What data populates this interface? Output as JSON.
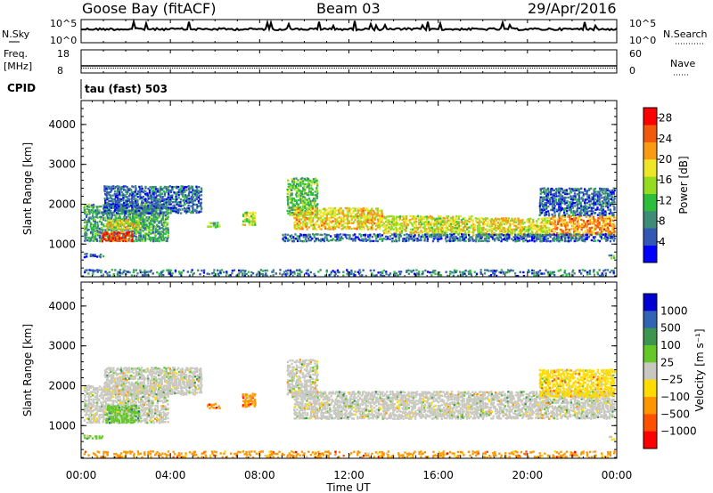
{
  "header": {
    "station": "Goose Bay (fitACF)",
    "beam": "Beam 03",
    "date": "29/Apr/2016"
  },
  "strip_labels": {
    "nsky": "N.Sky",
    "nsearch": "N.Search",
    "freq_line1": "Freq.",
    "freq_line2": "[MHz]",
    "nave": "Nave",
    "cpid": "CPID",
    "cpid_value": "tau (fast) 503"
  },
  "strip_ticks": {
    "noise_left": [
      "10^5",
      "10^0"
    ],
    "noise_right": [
      "10^5",
      "10^0"
    ],
    "freq_left": [
      "18",
      "8"
    ],
    "nave_right": [
      "60",
      "0"
    ]
  },
  "chart_data": [
    {
      "type": "heatmap",
      "name": "power",
      "ylabel": "Slant Range [km]",
      "xlabel": "",
      "ylim": [
        180,
        4600
      ],
      "yticks": [
        1000,
        2000,
        3000,
        4000
      ],
      "xlim": [
        0,
        24
      ],
      "colorbar": {
        "label": "Power [dB]",
        "ticks": [
          4,
          8,
          12,
          16,
          20,
          24,
          28
        ],
        "range": [
          0,
          30
        ],
        "colors": [
          "#0000ff",
          "#3257b4",
          "#3c8c78",
          "#2dbe3c",
          "#96dc1e",
          "#f0e628",
          "#fa9b14",
          "#f05a0a",
          "#ff0000"
        ]
      },
      "bands": [
        {
          "t0": 0.1,
          "t1": 3.9,
          "r0": 1050,
          "r1": 2000,
          "level": 10
        },
        {
          "t0": 0.9,
          "t1": 2.3,
          "r0": 1050,
          "r1": 1300,
          "level": 27
        },
        {
          "t0": 1.1,
          "t1": 2.6,
          "r0": 1350,
          "r1": 1600,
          "level": 18
        },
        {
          "t0": 1.0,
          "t1": 5.4,
          "r0": 1750,
          "r1": 2450,
          "level": 6
        },
        {
          "t0": 0.1,
          "t1": 1.0,
          "r0": 650,
          "r1": 760,
          "level": 6
        },
        {
          "t0": 5.6,
          "t1": 6.2,
          "r0": 1400,
          "r1": 1550,
          "level": 14
        },
        {
          "t0": 7.2,
          "t1": 7.8,
          "r0": 1450,
          "r1": 1800,
          "level": 16
        },
        {
          "t0": 9.2,
          "t1": 10.6,
          "r0": 1700,
          "r1": 2650,
          "level": 12
        },
        {
          "t0": 9.5,
          "t1": 13.5,
          "r0": 1350,
          "r1": 1900,
          "level": 19
        },
        {
          "t0": 13.5,
          "t1": 17.5,
          "r0": 1250,
          "r1": 1700,
          "level": 17
        },
        {
          "t0": 17.5,
          "t1": 21.0,
          "r0": 1200,
          "r1": 1650,
          "level": 18
        },
        {
          "t0": 21.0,
          "t1": 23.9,
          "r0": 1200,
          "r1": 1700,
          "level": 22
        },
        {
          "t0": 9.0,
          "t1": 23.9,
          "r0": 1050,
          "r1": 1250,
          "level": 6
        },
        {
          "t0": 20.5,
          "t1": 23.9,
          "r0": 1700,
          "r1": 2400,
          "level": 6
        },
        {
          "t0": 23.6,
          "t1": 23.9,
          "r0": 620,
          "r1": 720,
          "level": 10
        },
        {
          "t0": 0.1,
          "t1": 23.9,
          "r0": 180,
          "r1": 350,
          "level": 7
        }
      ]
    },
    {
      "type": "heatmap",
      "name": "velocity",
      "ylabel": "Slant Range [km]",
      "xlabel": "Time UT",
      "ylim": [
        180,
        4600
      ],
      "yticks": [
        1000,
        2000,
        3000,
        4000
      ],
      "xlim": [
        0,
        24
      ],
      "xtick_labels": [
        "00:00",
        "04:00",
        "08:00",
        "12:00",
        "16:00",
        "20:00",
        "00:00"
      ],
      "colorbar": {
        "label": "Velocity [m s⁻¹]",
        "ticks": [
          "1000",
          "500",
          "100",
          "25",
          "−25",
          "−100",
          "−500",
          "−1000"
        ],
        "colors": [
          "#0000d2",
          "#3264b4",
          "#3c9650",
          "#64c828",
          "#c8c8c0",
          "#ffdc00",
          "#ff9600",
          "#ff5000",
          "#ff0000"
        ]
      },
      "bands": [
        {
          "t0": 0.1,
          "t1": 3.9,
          "r0": 1050,
          "r1": 2000,
          "level": 4
        },
        {
          "t0": 1.1,
          "t1": 2.6,
          "r0": 1050,
          "r1": 1500,
          "level": 3
        },
        {
          "t0": 1.0,
          "t1": 5.4,
          "r0": 1750,
          "r1": 2450,
          "level": 4
        },
        {
          "t0": 0.1,
          "t1": 1.0,
          "r0": 650,
          "r1": 760,
          "level": 3
        },
        {
          "t0": 5.6,
          "t1": 6.2,
          "r0": 1400,
          "r1": 1550,
          "level": 6
        },
        {
          "t0": 7.2,
          "t1": 7.8,
          "r0": 1450,
          "r1": 1800,
          "level": 6
        },
        {
          "t0": 9.2,
          "t1": 10.6,
          "r0": 1700,
          "r1": 2650,
          "level": 4
        },
        {
          "t0": 9.5,
          "t1": 23.9,
          "r0": 1150,
          "r1": 1850,
          "level": 4
        },
        {
          "t0": 20.5,
          "t1": 23.9,
          "r0": 1700,
          "r1": 2400,
          "level": 5
        },
        {
          "t0": 23.6,
          "t1": 23.9,
          "r0": 620,
          "r1": 720,
          "level": 4
        },
        {
          "t0": 0.1,
          "t1": 23.9,
          "r0": 180,
          "r1": 350,
          "level": 6
        }
      ]
    }
  ]
}
